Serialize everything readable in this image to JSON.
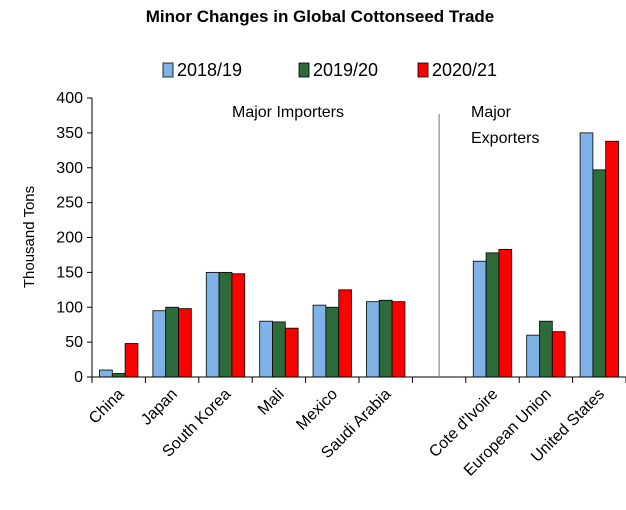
{
  "chart_data": {
    "type": "bar",
    "title": "Minor Changes in Global  Cottonseed Trade",
    "ylabel": "Thousand Tons",
    "ylim": [
      0,
      400
    ],
    "yticks": [
      0,
      50,
      100,
      150,
      200,
      250,
      300,
      350,
      400
    ],
    "legend_position": "top",
    "categories": [
      "China",
      "Japan",
      "South Korea",
      "Mali",
      "Mexico",
      "Saudi Arabia",
      "",
      "Cote d'Ivoire",
      "European Union",
      "United States"
    ],
    "series": [
      {
        "name": "2018/19",
        "color": "#7fb2e6",
        "values": [
          10,
          95,
          150,
          80,
          103,
          108,
          null,
          166,
          60,
          350
        ]
      },
      {
        "name": "2019/20",
        "color": "#2e6b3a",
        "values": [
          5,
          100,
          150,
          79,
          100,
          110,
          null,
          178,
          80,
          297
        ]
      },
      {
        "name": "2020/21",
        "color": "#ff0000",
        "values": [
          48,
          98,
          148,
          70,
          125,
          108,
          null,
          183,
          65,
          338
        ]
      }
    ],
    "annotations": {
      "importers": "Major Importers",
      "exporters_line1": "Major",
      "exporters_line2": "Exporters"
    }
  }
}
